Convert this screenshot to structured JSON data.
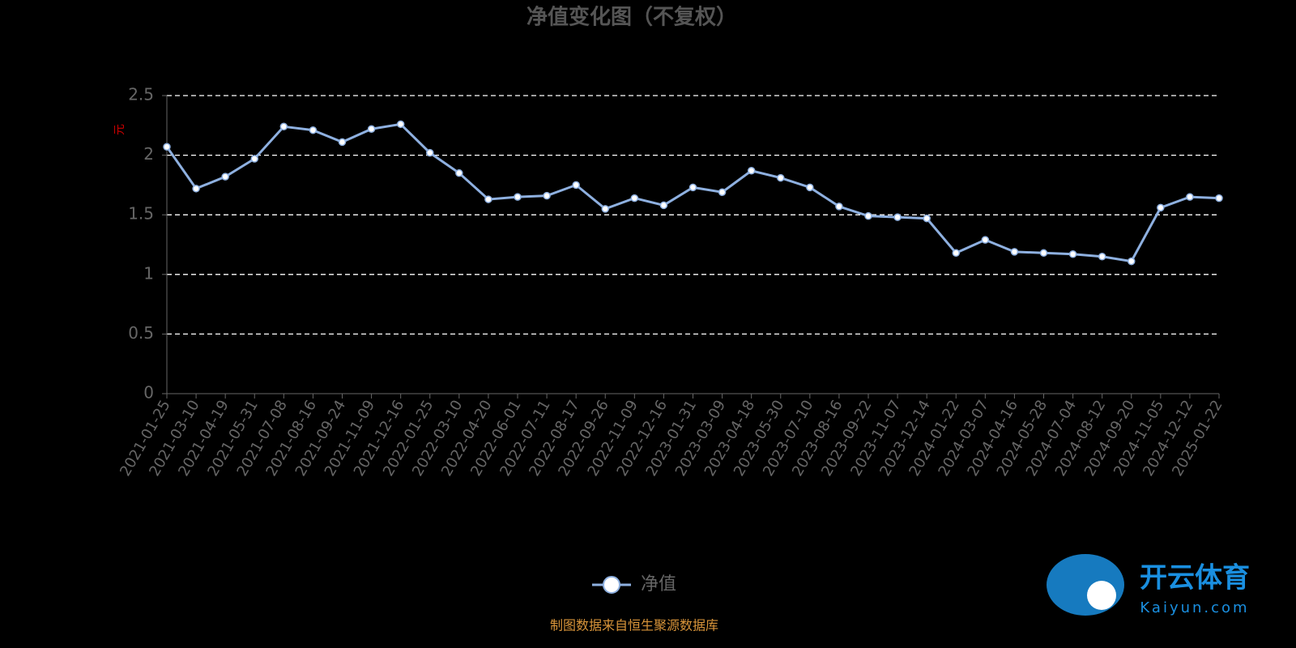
{
  "chart_data": {
    "type": "line",
    "title": "净值变化图（不复权）",
    "y_label": "元",
    "source": "制图数据来自恒生聚源数据库",
    "watermark": {
      "name": "开云体育",
      "site": "Kaiyun.com"
    },
    "categories": [
      "2021-01-25",
      "2021-03-10",
      "2021-04-19",
      "2021-05-31",
      "2021-07-08",
      "2021-08-16",
      "2021-09-24",
      "2021-11-09",
      "2021-12-16",
      "2022-01-25",
      "2022-03-10",
      "2022-04-20",
      "2022-06-01",
      "2022-07-11",
      "2022-08-17",
      "2022-09-26",
      "2022-11-09",
      "2022-12-16",
      "2023-01-31",
      "2023-03-09",
      "2023-04-18",
      "2023-05-30",
      "2023-07-10",
      "2023-08-16",
      "2023-09-22",
      "2023-11-07",
      "2023-12-14",
      "2024-01-22",
      "2024-03-07",
      "2024-04-16",
      "2024-05-28",
      "2024-07-04",
      "2024-08-12",
      "2024-09-20",
      "2024-11-05",
      "2024-12-12",
      "2025-01-22"
    ],
    "series": [
      {
        "name": "净值",
        "color": "#8eb0e0",
        "values": [
          2.07,
          1.72,
          1.82,
          1.97,
          2.24,
          2.21,
          2.11,
          2.22,
          2.26,
          2.02,
          1.85,
          1.63,
          1.65,
          1.66,
          1.75,
          1.55,
          1.64,
          1.58,
          1.73,
          1.69,
          1.87,
          1.81,
          1.73,
          1.57,
          1.49,
          1.48,
          1.47,
          1.18,
          1.29,
          1.19,
          1.18,
          1.17,
          1.15,
          1.11,
          1.56,
          1.65,
          1.64
        ]
      }
    ],
    "ylim": [
      0,
      2.5
    ],
    "yticks": [
      0,
      0.5,
      1,
      1.5,
      2,
      2.5
    ],
    "grid": true
  }
}
